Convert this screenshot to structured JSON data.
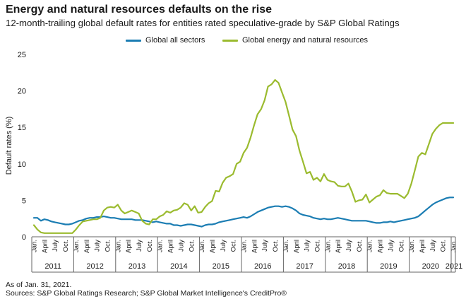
{
  "title": "Energy and natural resources defaults on the rise",
  "subtitle": "12-month-trailing global default rates for entities rated speculative-grade by S&P Global Ratings",
  "footnotes": {
    "as_of": "As of Jan. 31, 2021.",
    "sources": "Sources: S&P Global Ratings Research; S&P Global Market Intelligence's CreditPro®"
  },
  "colors": {
    "all_sectors": "#1b7db3",
    "energy": "#9bbb2f",
    "axis": "#666666",
    "text": "#1a1a1a"
  },
  "chart_data": {
    "type": "line",
    "ylabel": "Default rates (%)",
    "xlabel": "",
    "ylim": [
      0,
      25
    ],
    "yticks": [
      0,
      5,
      10,
      15,
      20,
      25
    ],
    "grid": false,
    "legend_position": "top",
    "month_tick_labels": [
      "Jan.",
      "April",
      "July",
      "Oct."
    ],
    "year_labels": [
      "2011",
      "2012",
      "2013",
      "2014",
      "2015",
      "2016",
      "2017",
      "2018",
      "2019",
      "2020",
      "2021"
    ],
    "x_start": "2011-01",
    "x_end": "2021-01",
    "series": [
      {
        "name": "Global all sectors",
        "color": "#1b7db3",
        "points": [
          [
            "2011-01",
            2.6
          ],
          [
            "2011-02",
            2.6
          ],
          [
            "2011-03",
            2.2
          ],
          [
            "2011-04",
            2.4
          ],
          [
            "2011-05",
            2.3
          ],
          [
            "2011-06",
            2.1
          ],
          [
            "2011-07",
            2.0
          ],
          [
            "2011-08",
            1.9
          ],
          [
            "2011-09",
            1.8
          ],
          [
            "2011-10",
            1.7
          ],
          [
            "2011-11",
            1.7
          ],
          [
            "2011-12",
            1.8
          ],
          [
            "2012-01",
            2.0
          ],
          [
            "2012-02",
            2.2
          ],
          [
            "2012-03",
            2.3
          ],
          [
            "2012-04",
            2.5
          ],
          [
            "2012-05",
            2.6
          ],
          [
            "2012-06",
            2.6
          ],
          [
            "2012-07",
            2.7
          ],
          [
            "2012-08",
            2.7
          ],
          [
            "2012-09",
            2.8
          ],
          [
            "2012-10",
            2.7
          ],
          [
            "2012-11",
            2.6
          ],
          [
            "2012-12",
            2.6
          ],
          [
            "2013-01",
            2.5
          ],
          [
            "2013-02",
            2.4
          ],
          [
            "2013-03",
            2.4
          ],
          [
            "2013-04",
            2.4
          ],
          [
            "2013-05",
            2.4
          ],
          [
            "2013-06",
            2.3
          ],
          [
            "2013-07",
            2.3
          ],
          [
            "2013-08",
            2.3
          ],
          [
            "2013-09",
            2.2
          ],
          [
            "2013-10",
            2.1
          ],
          [
            "2013-11",
            2.0
          ],
          [
            "2013-12",
            2.1
          ],
          [
            "2014-01",
            2.0
          ],
          [
            "2014-02",
            1.9
          ],
          [
            "2014-03",
            1.8
          ],
          [
            "2014-04",
            1.8
          ],
          [
            "2014-05",
            1.6
          ],
          [
            "2014-06",
            1.6
          ],
          [
            "2014-07",
            1.5
          ],
          [
            "2014-08",
            1.6
          ],
          [
            "2014-09",
            1.7
          ],
          [
            "2014-10",
            1.7
          ],
          [
            "2014-11",
            1.6
          ],
          [
            "2014-12",
            1.5
          ],
          [
            "2015-01",
            1.4
          ],
          [
            "2015-02",
            1.6
          ],
          [
            "2015-03",
            1.7
          ],
          [
            "2015-04",
            1.7
          ],
          [
            "2015-05",
            1.8
          ],
          [
            "2015-06",
            2.0
          ],
          [
            "2015-07",
            2.1
          ],
          [
            "2015-08",
            2.2
          ],
          [
            "2015-09",
            2.3
          ],
          [
            "2015-10",
            2.4
          ],
          [
            "2015-11",
            2.5
          ],
          [
            "2015-12",
            2.6
          ],
          [
            "2016-01",
            2.7
          ],
          [
            "2016-02",
            2.6
          ],
          [
            "2016-03",
            2.8
          ],
          [
            "2016-04",
            3.1
          ],
          [
            "2016-05",
            3.4
          ],
          [
            "2016-06",
            3.6
          ],
          [
            "2016-07",
            3.8
          ],
          [
            "2016-08",
            4.0
          ],
          [
            "2016-09",
            4.1
          ],
          [
            "2016-10",
            4.2
          ],
          [
            "2016-11",
            4.2
          ],
          [
            "2016-12",
            4.1
          ],
          [
            "2017-01",
            4.2
          ],
          [
            "2017-02",
            4.1
          ],
          [
            "2017-03",
            3.9
          ],
          [
            "2017-04",
            3.6
          ],
          [
            "2017-05",
            3.2
          ],
          [
            "2017-06",
            3.0
          ],
          [
            "2017-07",
            2.9
          ],
          [
            "2017-08",
            2.8
          ],
          [
            "2017-09",
            2.6
          ],
          [
            "2017-10",
            2.5
          ],
          [
            "2017-11",
            2.4
          ],
          [
            "2017-12",
            2.5
          ],
          [
            "2018-01",
            2.4
          ],
          [
            "2018-02",
            2.4
          ],
          [
            "2018-03",
            2.5
          ],
          [
            "2018-04",
            2.6
          ],
          [
            "2018-05",
            2.5
          ],
          [
            "2018-06",
            2.4
          ],
          [
            "2018-07",
            2.3
          ],
          [
            "2018-08",
            2.2
          ],
          [
            "2018-09",
            2.2
          ],
          [
            "2018-10",
            2.2
          ],
          [
            "2018-11",
            2.2
          ],
          [
            "2018-12",
            2.2
          ],
          [
            "2019-01",
            2.1
          ],
          [
            "2019-02",
            2.0
          ],
          [
            "2019-03",
            1.9
          ],
          [
            "2019-04",
            1.9
          ],
          [
            "2019-05",
            2.0
          ],
          [
            "2019-06",
            2.0
          ],
          [
            "2019-07",
            2.1
          ],
          [
            "2019-08",
            2.0
          ],
          [
            "2019-09",
            2.1
          ],
          [
            "2019-10",
            2.2
          ],
          [
            "2019-11",
            2.3
          ],
          [
            "2019-12",
            2.4
          ],
          [
            "2020-01",
            2.5
          ],
          [
            "2020-02",
            2.6
          ],
          [
            "2020-03",
            2.8
          ],
          [
            "2020-04",
            3.2
          ],
          [
            "2020-05",
            3.6
          ],
          [
            "2020-06",
            4.0
          ],
          [
            "2020-07",
            4.4
          ],
          [
            "2020-08",
            4.7
          ],
          [
            "2020-09",
            4.9
          ],
          [
            "2020-10",
            5.1
          ],
          [
            "2020-11",
            5.3
          ],
          [
            "2020-12",
            5.4
          ],
          [
            "2021-01",
            5.4
          ]
        ]
      },
      {
        "name": "Global energy and natural resources",
        "color": "#9bbb2f",
        "points": [
          [
            "2011-01",
            1.6
          ],
          [
            "2011-02",
            1.0
          ],
          [
            "2011-03",
            0.6
          ],
          [
            "2011-04",
            0.5
          ],
          [
            "2011-05",
            0.5
          ],
          [
            "2011-06",
            0.5
          ],
          [
            "2011-07",
            0.5
          ],
          [
            "2011-08",
            0.5
          ],
          [
            "2011-09",
            0.5
          ],
          [
            "2011-10",
            0.5
          ],
          [
            "2011-11",
            0.5
          ],
          [
            "2011-12",
            0.5
          ],
          [
            "2012-01",
            1.0
          ],
          [
            "2012-02",
            1.6
          ],
          [
            "2012-03",
            2.1
          ],
          [
            "2012-04",
            2.2
          ],
          [
            "2012-05",
            2.3
          ],
          [
            "2012-06",
            2.4
          ],
          [
            "2012-07",
            2.4
          ],
          [
            "2012-08",
            2.6
          ],
          [
            "2012-09",
            3.6
          ],
          [
            "2012-10",
            4.0
          ],
          [
            "2012-11",
            4.1
          ],
          [
            "2012-12",
            4.0
          ],
          [
            "2013-01",
            4.4
          ],
          [
            "2013-02",
            3.6
          ],
          [
            "2013-03",
            3.2
          ],
          [
            "2013-04",
            3.4
          ],
          [
            "2013-05",
            3.6
          ],
          [
            "2013-06",
            3.4
          ],
          [
            "2013-07",
            3.2
          ],
          [
            "2013-08",
            2.2
          ],
          [
            "2013-09",
            1.8
          ],
          [
            "2013-10",
            1.7
          ],
          [
            "2013-11",
            2.4
          ],
          [
            "2013-12",
            2.4
          ],
          [
            "2014-01",
            2.8
          ],
          [
            "2014-02",
            3.0
          ],
          [
            "2014-03",
            3.5
          ],
          [
            "2014-04",
            3.3
          ],
          [
            "2014-05",
            3.6
          ],
          [
            "2014-06",
            3.7
          ],
          [
            "2014-07",
            4.0
          ],
          [
            "2014-08",
            4.6
          ],
          [
            "2014-09",
            4.4
          ],
          [
            "2014-10",
            3.6
          ],
          [
            "2014-11",
            4.2
          ],
          [
            "2014-12",
            3.3
          ],
          [
            "2015-01",
            3.4
          ],
          [
            "2015-02",
            4.1
          ],
          [
            "2015-03",
            4.6
          ],
          [
            "2015-04",
            4.9
          ],
          [
            "2015-05",
            6.3
          ],
          [
            "2015-06",
            6.2
          ],
          [
            "2015-07",
            7.4
          ],
          [
            "2015-08",
            8.1
          ],
          [
            "2015-09",
            8.3
          ],
          [
            "2015-10",
            8.6
          ],
          [
            "2015-11",
            10.0
          ],
          [
            "2015-12",
            10.3
          ],
          [
            "2016-01",
            11.5
          ],
          [
            "2016-02",
            12.2
          ],
          [
            "2016-03",
            13.6
          ],
          [
            "2016-04",
            15.3
          ],
          [
            "2016-05",
            16.8
          ],
          [
            "2016-06",
            17.5
          ],
          [
            "2016-07",
            18.7
          ],
          [
            "2016-08",
            20.6
          ],
          [
            "2016-09",
            20.9
          ],
          [
            "2016-10",
            21.5
          ],
          [
            "2016-11",
            21.1
          ],
          [
            "2016-12",
            19.8
          ],
          [
            "2017-01",
            18.5
          ],
          [
            "2017-02",
            16.6
          ],
          [
            "2017-03",
            14.7
          ],
          [
            "2017-04",
            13.8
          ],
          [
            "2017-05",
            11.8
          ],
          [
            "2017-06",
            10.3
          ],
          [
            "2017-07",
            8.7
          ],
          [
            "2017-08",
            8.9
          ],
          [
            "2017-09",
            7.8
          ],
          [
            "2017-10",
            8.1
          ],
          [
            "2017-11",
            7.6
          ],
          [
            "2017-12",
            8.6
          ],
          [
            "2018-01",
            7.8
          ],
          [
            "2018-02",
            7.6
          ],
          [
            "2018-03",
            7.5
          ],
          [
            "2018-04",
            7.0
          ],
          [
            "2018-05",
            6.9
          ],
          [
            "2018-06",
            6.9
          ],
          [
            "2018-07",
            7.3
          ],
          [
            "2018-08",
            6.2
          ],
          [
            "2018-09",
            4.8
          ],
          [
            "2018-10",
            5.0
          ],
          [
            "2018-11",
            5.1
          ],
          [
            "2018-12",
            5.8
          ],
          [
            "2019-01",
            4.7
          ],
          [
            "2019-02",
            5.1
          ],
          [
            "2019-03",
            5.5
          ],
          [
            "2019-04",
            5.7
          ],
          [
            "2019-05",
            6.4
          ],
          [
            "2019-06",
            6.0
          ],
          [
            "2019-07",
            5.9
          ],
          [
            "2019-08",
            5.9
          ],
          [
            "2019-09",
            5.9
          ],
          [
            "2019-10",
            5.6
          ],
          [
            "2019-11",
            5.3
          ],
          [
            "2019-12",
            5.9
          ],
          [
            "2020-01",
            7.3
          ],
          [
            "2020-02",
            9.1
          ],
          [
            "2020-03",
            11.0
          ],
          [
            "2020-04",
            11.5
          ],
          [
            "2020-05",
            11.3
          ],
          [
            "2020-06",
            12.7
          ],
          [
            "2020-07",
            14.1
          ],
          [
            "2020-08",
            14.8
          ],
          [
            "2020-09",
            15.3
          ],
          [
            "2020-10",
            15.6
          ],
          [
            "2020-11",
            15.6
          ],
          [
            "2020-12",
            15.6
          ],
          [
            "2021-01",
            15.6
          ]
        ]
      }
    ]
  }
}
